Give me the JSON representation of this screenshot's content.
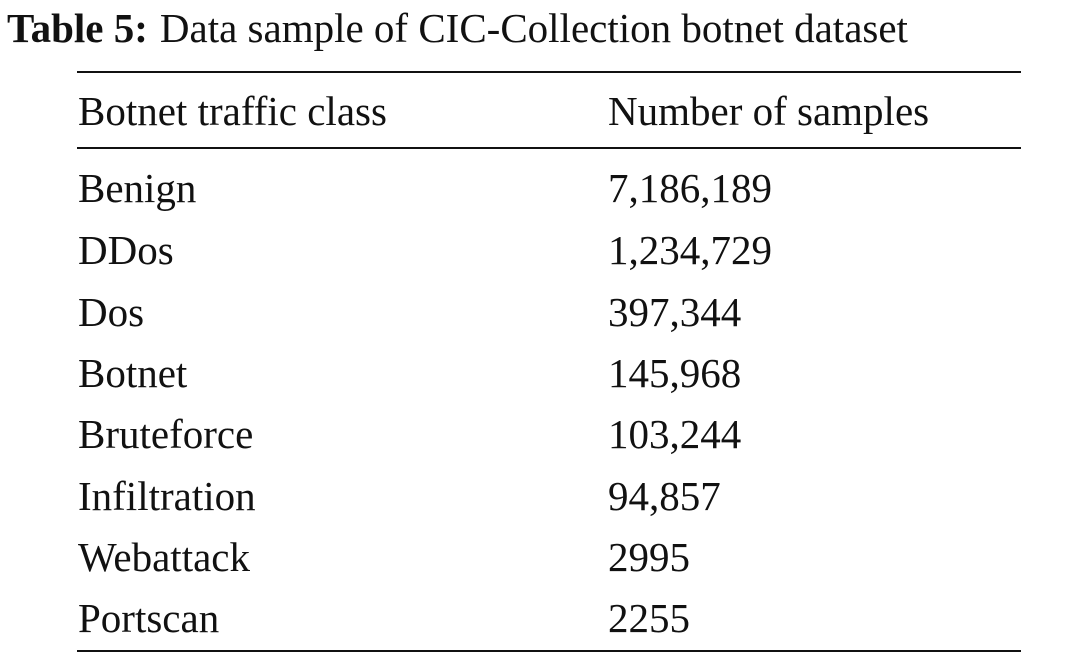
{
  "caption": {
    "label": "Table 5:",
    "text": "Data sample of CIC-Collection botnet dataset"
  },
  "table": {
    "headers": [
      "Botnet traffic class",
      "Number of samples"
    ],
    "rows": [
      [
        "Benign",
        "7,186,189"
      ],
      [
        "DDos",
        "1,234,729"
      ],
      [
        "Dos",
        "397,344"
      ],
      [
        "Botnet",
        "145,968"
      ],
      [
        "Bruteforce",
        "103,244"
      ],
      [
        "Infiltration",
        "94,857"
      ],
      [
        "Webattack",
        "2995"
      ],
      [
        "Portscan",
        "2255"
      ]
    ]
  }
}
